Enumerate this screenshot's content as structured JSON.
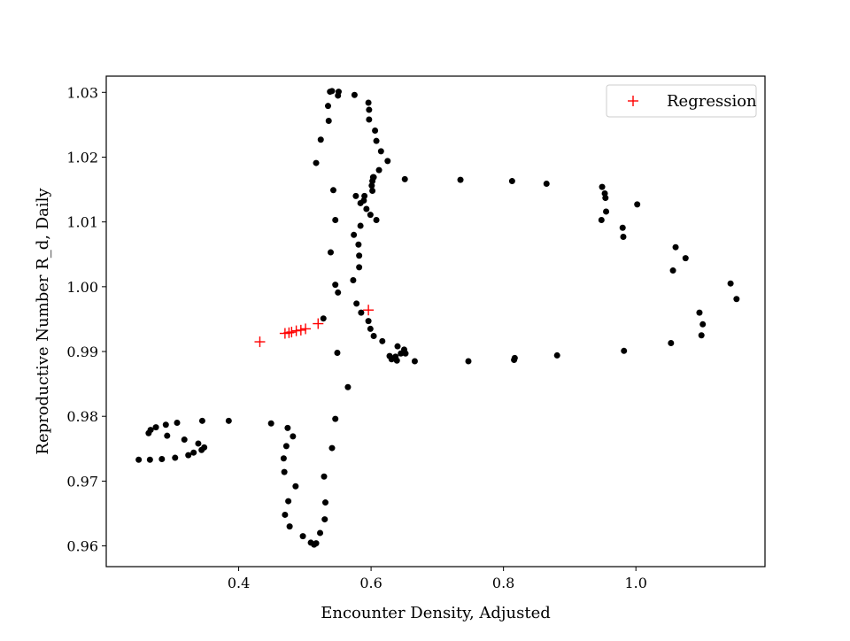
{
  "chart_data": {
    "type": "scatter",
    "xlabel": "Encounter Density, Adjusted",
    "ylabel": "Reproductive Number R_d, Daily",
    "xlim": [
      0.2,
      1.195
    ],
    "ylim": [
      0.9568,
      1.0325
    ],
    "x_ticks": [
      0.4,
      0.6,
      0.8,
      1.0
    ],
    "x_tick_labels": [
      "0.4",
      "0.6",
      "0.8",
      "1.0"
    ],
    "y_ticks": [
      0.96,
      0.97,
      0.98,
      0.99,
      1.0,
      1.01,
      1.02,
      1.03
    ],
    "y_tick_labels": [
      "0.96",
      "0.97",
      "0.98",
      "0.99",
      "1.00",
      "1.01",
      "1.02",
      "1.03"
    ],
    "grid": false,
    "legend_position": "top-right",
    "series": [
      {
        "name": "",
        "marker": "circle",
        "color": "#000000",
        "points": [
          [
            0.249,
            0.9733
          ],
          [
            0.266,
            0.9733
          ],
          [
            0.284,
            0.9734
          ],
          [
            0.304,
            0.9736
          ],
          [
            0.324,
            0.974
          ],
          [
            0.332,
            0.9744
          ],
          [
            0.344,
            0.9748
          ],
          [
            0.348,
            0.9752
          ],
          [
            0.339,
            0.9758
          ],
          [
            0.318,
            0.9764
          ],
          [
            0.292,
            0.977
          ],
          [
            0.264,
            0.9774
          ],
          [
            0.267,
            0.9779
          ],
          [
            0.275,
            0.9783
          ],
          [
            0.29,
            0.9787
          ],
          [
            0.307,
            0.979
          ],
          [
            0.345,
            0.9793
          ],
          [
            0.385,
            0.9793
          ],
          [
            0.449,
            0.9789
          ],
          [
            0.474,
            0.9782
          ],
          [
            0.482,
            0.9769
          ],
          [
            0.472,
            0.9754
          ],
          [
            0.468,
            0.9735
          ],
          [
            0.469,
            0.9714
          ],
          [
            0.486,
            0.9692
          ],
          [
            0.475,
            0.9669
          ],
          [
            0.47,
            0.9648
          ],
          [
            0.477,
            0.963
          ],
          [
            0.497,
            0.9615
          ],
          [
            0.509,
            0.9605
          ],
          [
            0.514,
            0.9602
          ],
          [
            0.517,
            0.9604
          ],
          [
            0.523,
            0.962
          ],
          [
            0.53,
            0.9641
          ],
          [
            0.531,
            0.9667
          ],
          [
            0.529,
            0.9707
          ],
          [
            0.541,
            0.9751
          ],
          [
            0.546,
            0.9796
          ],
          [
            0.565,
            0.9845
          ],
          [
            0.549,
            0.9898
          ],
          [
            0.528,
            0.9951
          ],
          [
            0.596,
            0.9947
          ],
          [
            0.599,
            0.9935
          ],
          [
            0.604,
            0.9924
          ],
          [
            0.617,
            0.9916
          ],
          [
            0.628,
            0.9893
          ],
          [
            0.631,
            0.9888
          ],
          [
            0.637,
            0.9892
          ],
          [
            0.639,
            0.9886
          ],
          [
            0.64,
            0.9908
          ],
          [
            0.645,
            0.9897
          ],
          [
            0.65,
            0.9903
          ],
          [
            0.652,
            0.9897
          ],
          [
            0.666,
            0.9885
          ],
          [
            0.747,
            0.9885
          ],
          [
            0.816,
            0.9887
          ],
          [
            0.817,
            0.989
          ],
          [
            0.881,
            0.9894
          ],
          [
            0.982,
            0.9901
          ],
          [
            1.053,
            0.9913
          ],
          [
            1.099,
            0.9925
          ],
          [
            1.101,
            0.9942
          ],
          [
            1.096,
            0.996
          ],
          [
            1.152,
            0.9981
          ],
          [
            1.143,
            1.0005
          ],
          [
            1.075,
            1.0044
          ],
          [
            1.06,
            1.0061
          ],
          [
            1.056,
            1.0025
          ],
          [
            0.981,
            1.0077
          ],
          [
            0.98,
            1.0091
          ],
          [
            0.948,
            1.0103
          ],
          [
            0.955,
            1.0116
          ],
          [
            1.002,
            1.0127
          ],
          [
            0.954,
            1.0137
          ],
          [
            0.953,
            1.0144
          ],
          [
            0.949,
            1.0154
          ],
          [
            0.865,
            1.0159
          ],
          [
            0.813,
            1.0163
          ],
          [
            0.735,
            1.0165
          ],
          [
            0.651,
            1.0166
          ],
          [
            0.604,
            1.0169
          ],
          [
            0.602,
            1.0163
          ],
          [
            0.601,
            1.0156
          ],
          [
            0.602,
            1.0148
          ],
          [
            0.59,
            1.014
          ],
          [
            0.577,
            1.014
          ],
          [
            0.589,
            1.0133
          ],
          [
            0.584,
            1.0129
          ],
          [
            0.593,
            1.012
          ],
          [
            0.599,
            1.0111
          ],
          [
            0.608,
            1.0103
          ],
          [
            0.584,
            1.0094
          ],
          [
            0.574,
            1.008
          ],
          [
            0.581,
            1.0065
          ],
          [
            0.582,
            1.0048
          ],
          [
            0.582,
            1.003
          ],
          [
            0.573,
            1.001
          ],
          [
            0.578,
            0.9974
          ],
          [
            0.585,
            0.996
          ],
          [
            0.55,
            0.9991
          ],
          [
            0.546,
            1.0003
          ],
          [
            0.539,
            1.0053
          ],
          [
            0.546,
            1.0103
          ],
          [
            0.543,
            1.0149
          ],
          [
            0.517,
            1.0191
          ],
          [
            0.524,
            1.0227
          ],
          [
            0.536,
            1.0256
          ],
          [
            0.535,
            1.0279
          ],
          [
            0.538,
            1.0301
          ],
          [
            0.541,
            1.0302
          ],
          [
            0.55,
            1.0295
          ],
          [
            0.551,
            1.0301
          ],
          [
            0.575,
            1.0296
          ],
          [
            0.596,
            1.0284
          ],
          [
            0.597,
            1.0273
          ],
          [
            0.597,
            1.0258
          ],
          [
            0.606,
            1.0241
          ],
          [
            0.608,
            1.0225
          ],
          [
            0.615,
            1.0209
          ],
          [
            0.625,
            1.0194
          ],
          [
            0.612,
            1.018
          ],
          [
            0.603,
            1.0169
          ]
        ]
      },
      {
        "name": "Regression",
        "marker": "plus",
        "color": "#ff0000",
        "points": [
          [
            0.432,
            0.9915
          ],
          [
            0.47,
            0.9928
          ],
          [
            0.476,
            0.9929
          ],
          [
            0.48,
            0.993
          ],
          [
            0.487,
            0.9932
          ],
          [
            0.494,
            0.9933
          ],
          [
            0.501,
            0.9935
          ],
          [
            0.52,
            0.9943
          ],
          [
            0.596,
            0.9964
          ]
        ]
      }
    ]
  }
}
